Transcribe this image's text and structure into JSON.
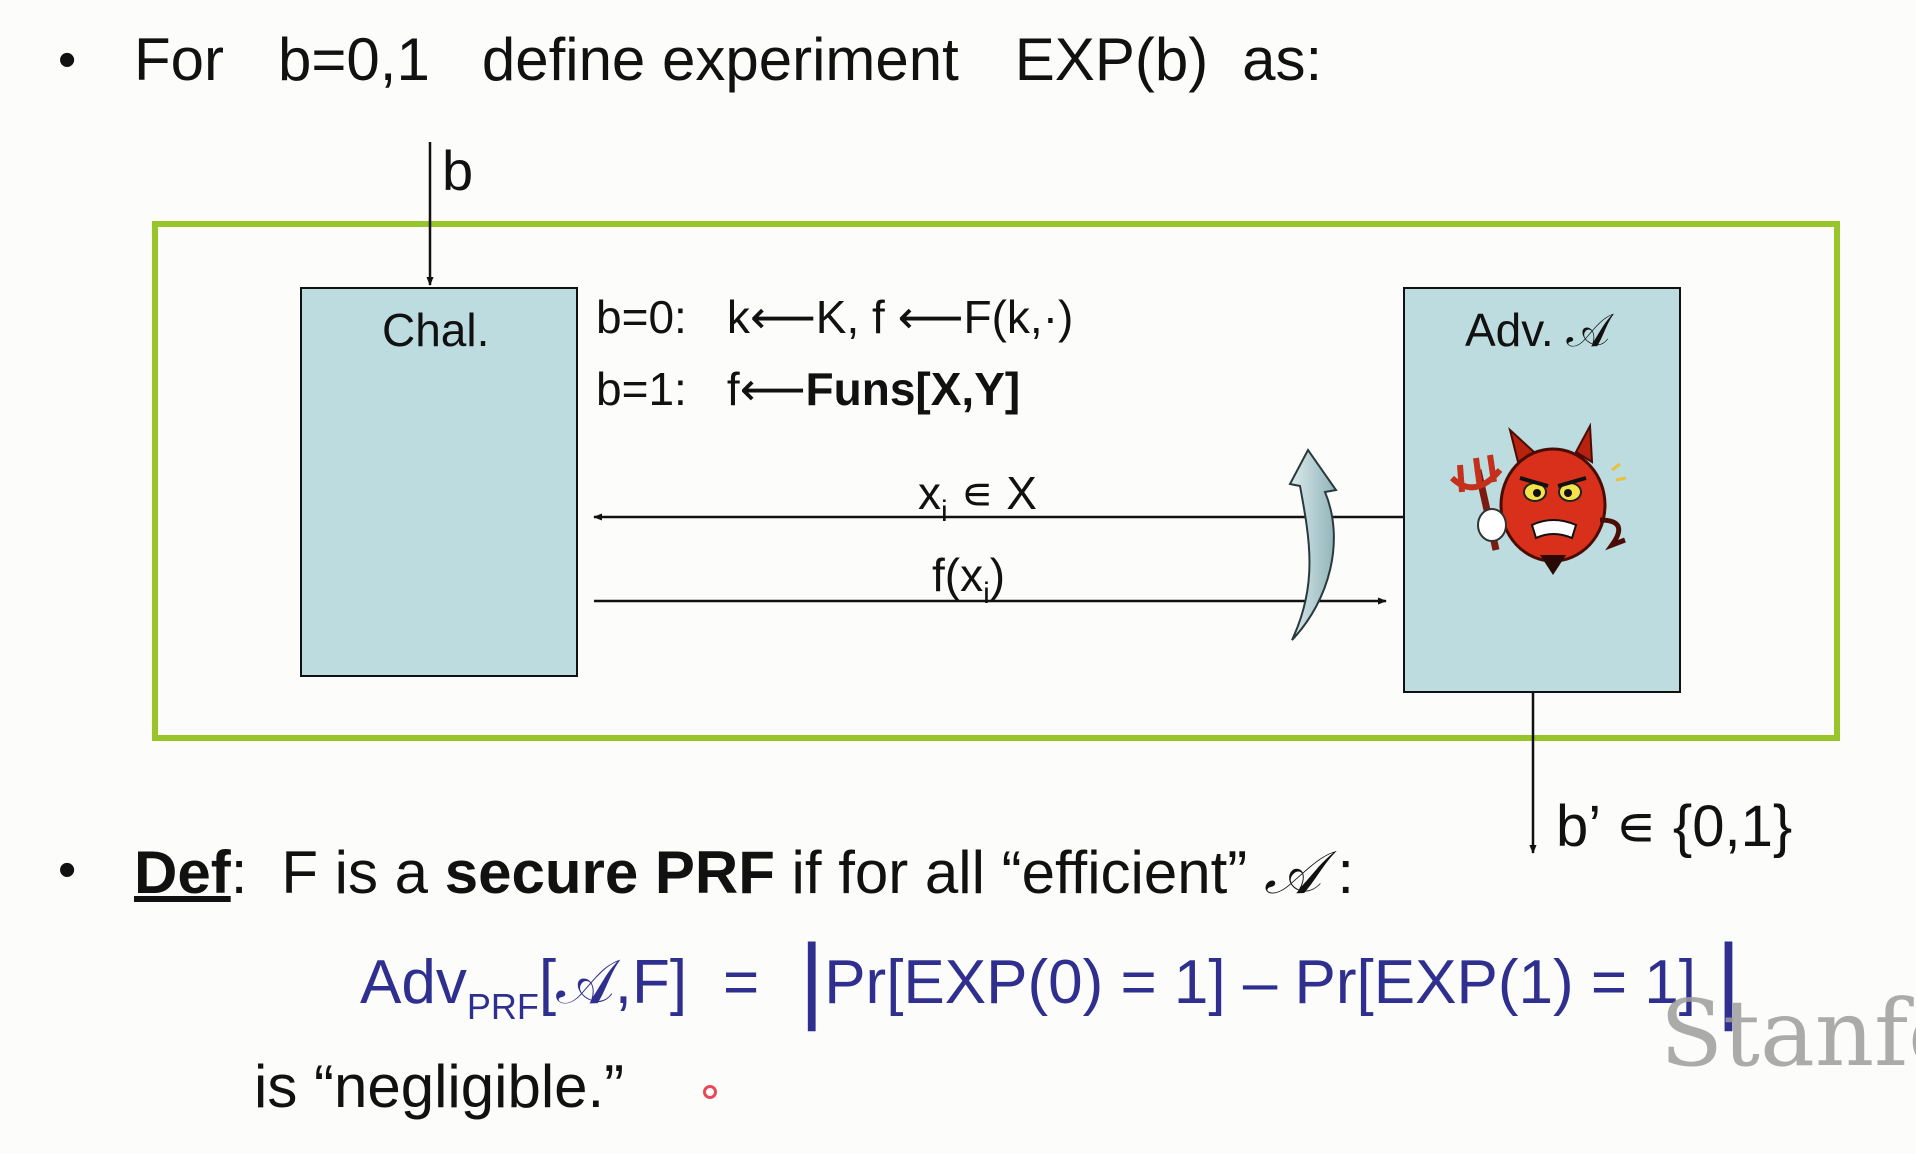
{
  "slide": {
    "line1": {
      "bullet": "•",
      "for": "For",
      "b_values": "b=0,1",
      "define": "define experiment",
      "exp": "EXP(b)",
      "as": "as:"
    }
  },
  "diagram": {
    "input_label": "b",
    "challenger_label": "Chal.",
    "adversary_label": "Adv. 𝒜",
    "case0": {
      "prefix": "b=0:",
      "text": "k⟵K,  f ⟵F(k,·)"
    },
    "case1": {
      "prefix": "b=1:",
      "text_plain": "f⟵",
      "text_bold": "Funs[X,Y]"
    },
    "query_label": {
      "main": "x",
      "sub": "i",
      "rest": " ∊ X"
    },
    "response_label": {
      "main": "f(x",
      "sub": "i",
      "rest": ")"
    },
    "output_label": "b’ ∊ {0,1}",
    "colors": {
      "box_fill": "#bcdcdf",
      "outer_border": "#97c52a",
      "loop_arrow": "#8fb3b8"
    },
    "icon": "devil-mascot-icon"
  },
  "definition": {
    "bullet": "•",
    "def_label": "Def",
    "colon": ":",
    "text1": "F is a ",
    "bold": "secure PRF",
    "text2": " if for all “efficient” ",
    "adv_symbol": "𝒜",
    "trail": " :",
    "formula": {
      "lhs_main": "Adv",
      "lhs_sub": "PRF",
      "lhs_args": "[𝒜,F]",
      "equals": "=",
      "bar": "|",
      "rhs": "Pr[EXP(0) = 1] – Pr[EXP(1) = 1]",
      "color": "#2e2f8e"
    },
    "conclusion": "is “negligible.”"
  },
  "watermark": "Stanfo"
}
